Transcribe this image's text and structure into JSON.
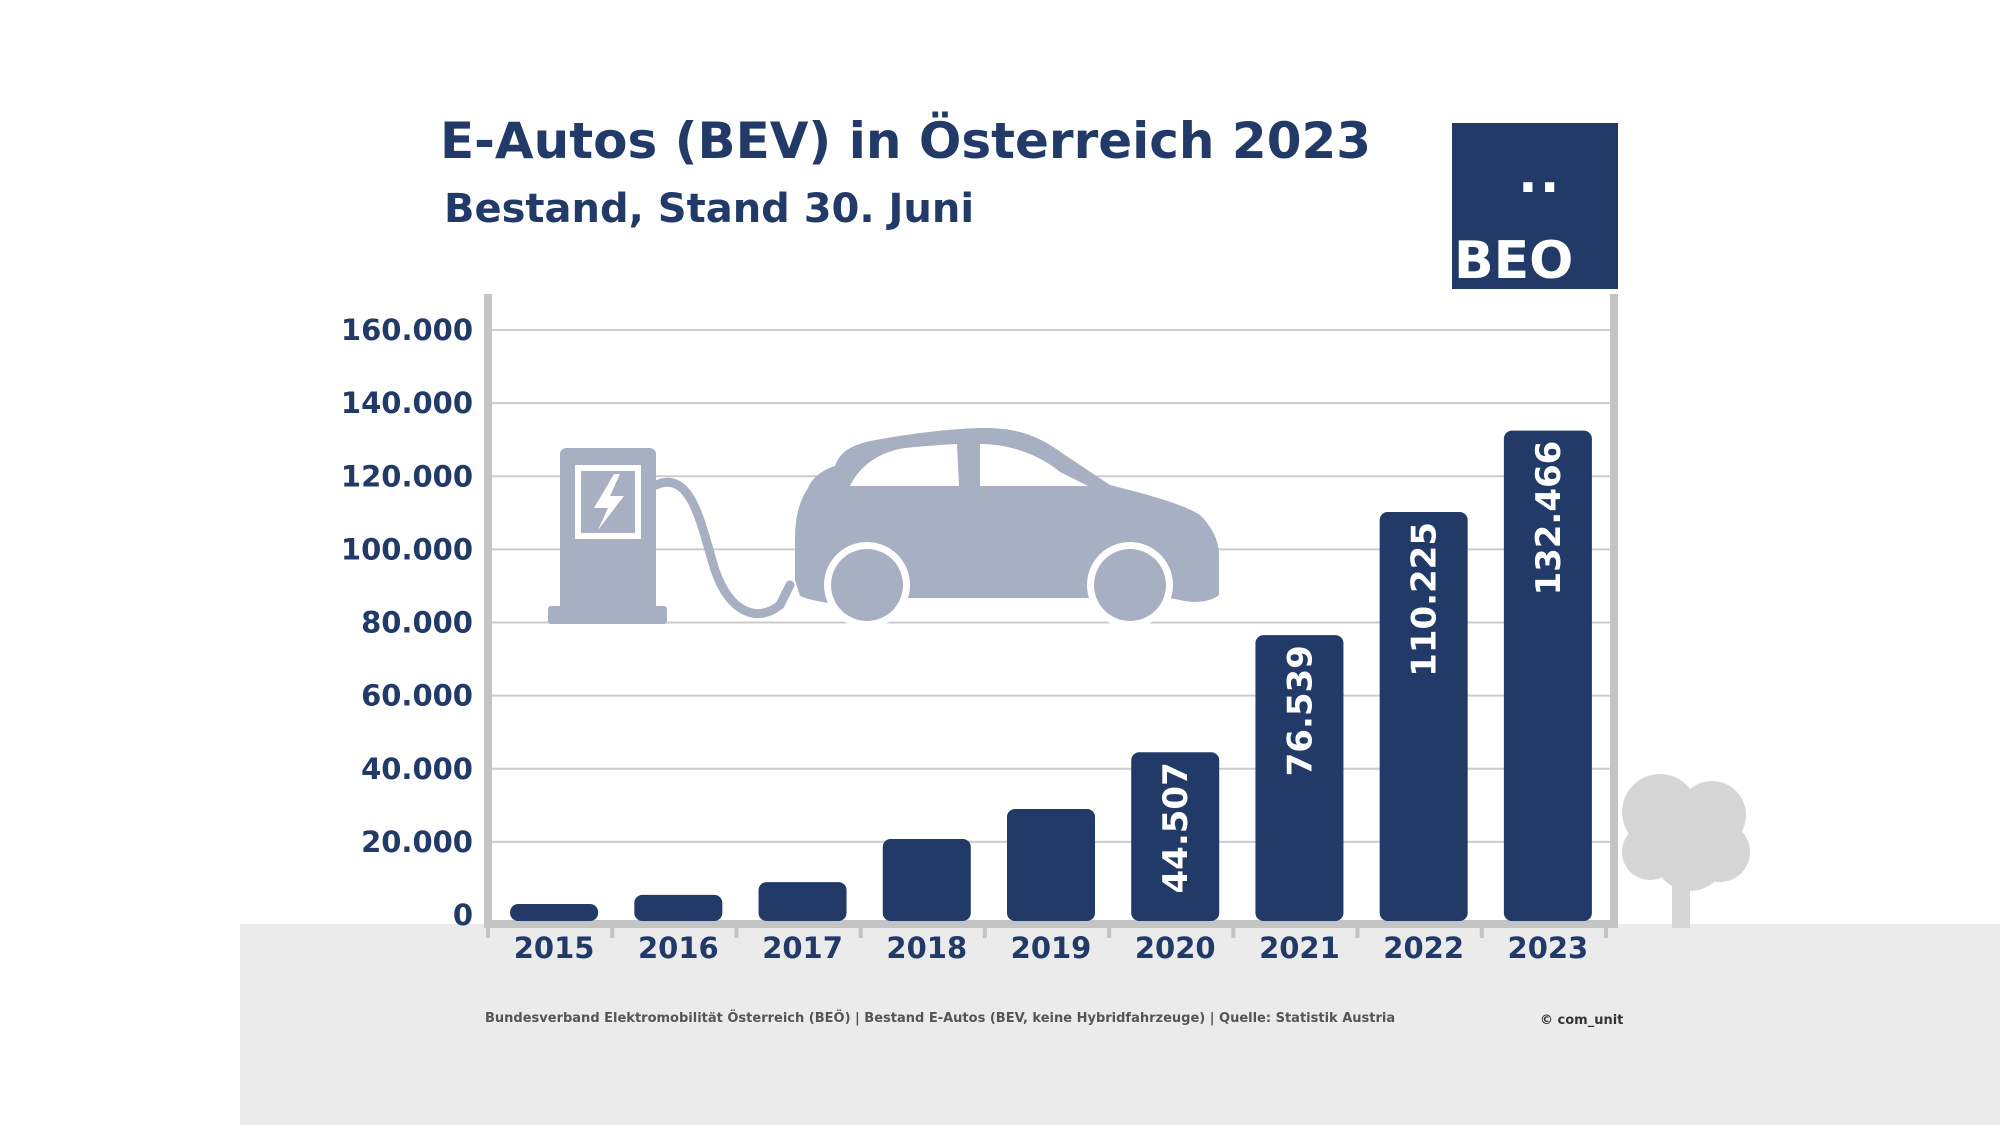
{
  "header": {
    "title": "E-Autos (BEV) in Österreich 2023",
    "subtitle": "Bestand, Stand 30. Juni"
  },
  "logo": {
    "dots": "..",
    "text": "BEO"
  },
  "footer": {
    "source": "Bundesverband Elektromobilität Österreich (BEÖ) | Bestand E-Autos (BEV, keine Hybridfahrzeuge) | Quelle: Statistik Austria",
    "credit": "© com_unit"
  },
  "colors": {
    "bar": "#213a68",
    "text": "#213a68",
    "axis": "#c4c4c4",
    "grid": "#cccccc",
    "illustration": "#a6b0c2",
    "ground": "#ebebeb"
  },
  "icons": [
    "charging-station-icon",
    "electric-car-icon",
    "tree-icon"
  ],
  "chart_data": {
    "type": "bar",
    "categories": [
      "2015",
      "2016",
      "2017",
      "2018",
      "2019",
      "2020",
      "2021",
      "2022",
      "2023"
    ],
    "values": [
      3000,
      5500,
      9000,
      20800,
      29000,
      44507,
      76539,
      110225,
      132466
    ],
    "data_labels": [
      "",
      "",
      "",
      "",
      "",
      "44.507",
      "76.539",
      "110.225",
      "132.466"
    ],
    "yticks": [
      0,
      20000,
      40000,
      60000,
      80000,
      100000,
      120000,
      140000,
      160000
    ],
    "ytick_labels": [
      "0",
      "20.000",
      "40.000",
      "60.000",
      "80.000",
      "100.000",
      "120.000",
      "140.000",
      "160.000"
    ],
    "ylim": [
      0,
      160000
    ],
    "title": "E-Autos (BEV) in Österreich 2023",
    "subtitle": "Bestand, Stand 30. Juni",
    "xlabel": "",
    "ylabel": "",
    "grid": true,
    "legend": "none"
  }
}
